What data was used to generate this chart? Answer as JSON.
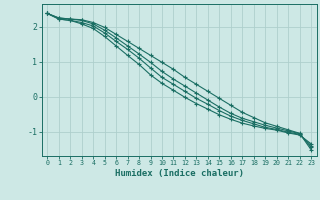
{
  "xlabel": "Humidex (Indice chaleur)",
  "ylabel": "",
  "background_color": "#cde8e5",
  "grid_color": "#aecfcc",
  "line_color": "#1a6e63",
  "xlim": [
    -0.5,
    23.5
  ],
  "ylim": [
    -1.7,
    2.65
  ],
  "yticks": [
    -1,
    0,
    1,
    2
  ],
  "xticks": [
    0,
    1,
    2,
    3,
    4,
    5,
    6,
    7,
    8,
    9,
    10,
    11,
    12,
    13,
    14,
    15,
    16,
    17,
    18,
    19,
    20,
    21,
    22,
    23
  ],
  "lines": [
    [
      2.38,
      2.25,
      2.22,
      2.2,
      2.12,
      1.98,
      1.78,
      1.58,
      1.38,
      1.18,
      0.98,
      0.78,
      0.55,
      0.35,
      0.15,
      -0.05,
      -0.25,
      -0.45,
      -0.6,
      -0.75,
      -0.85,
      -0.95,
      -1.05,
      -1.52
    ],
    [
      2.38,
      2.25,
      2.22,
      2.18,
      2.08,
      1.9,
      1.68,
      1.45,
      1.22,
      0.98,
      0.72,
      0.5,
      0.3,
      0.1,
      -0.1,
      -0.3,
      -0.48,
      -0.62,
      -0.72,
      -0.82,
      -0.9,
      -0.98,
      -1.06,
      -1.45
    ],
    [
      2.38,
      2.22,
      2.18,
      2.12,
      2.02,
      1.82,
      1.58,
      1.35,
      1.1,
      0.82,
      0.55,
      0.35,
      0.15,
      -0.05,
      -0.22,
      -0.4,
      -0.56,
      -0.68,
      -0.78,
      -0.88,
      -0.94,
      -1.02,
      -1.08,
      -1.4
    ],
    [
      2.38,
      2.22,
      2.18,
      2.08,
      1.95,
      1.72,
      1.45,
      1.18,
      0.92,
      0.62,
      0.38,
      0.18,
      -0.02,
      -0.2,
      -0.36,
      -0.52,
      -0.65,
      -0.76,
      -0.84,
      -0.91,
      -0.96,
      -1.04,
      -1.1,
      -1.35
    ]
  ]
}
